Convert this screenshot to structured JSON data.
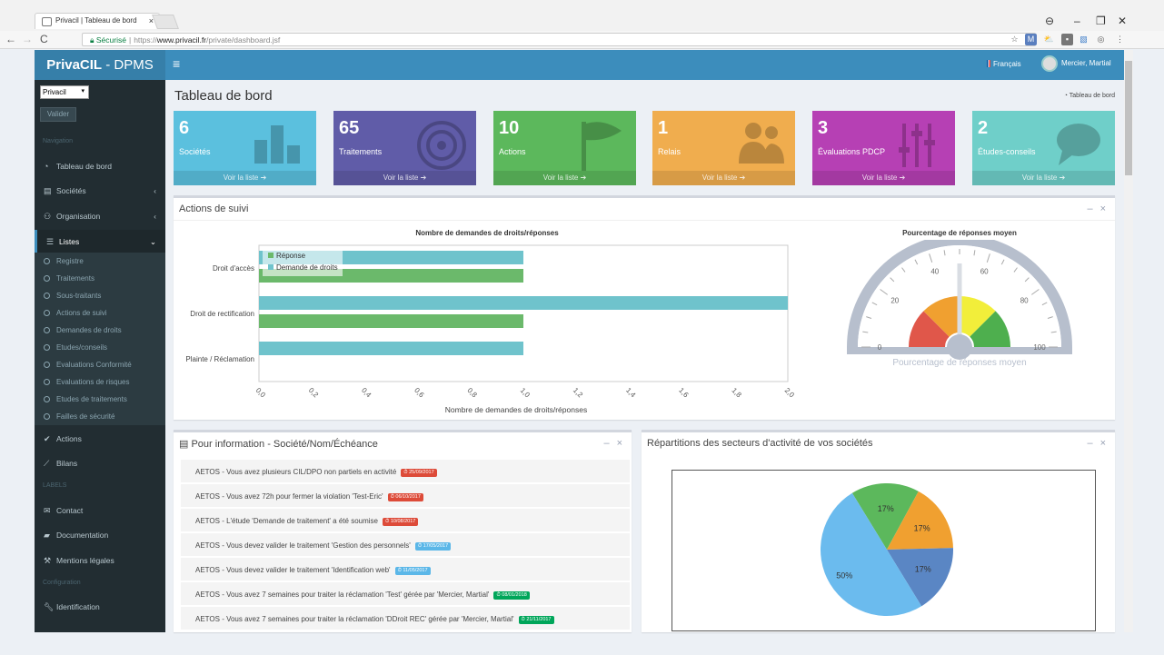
{
  "browser": {
    "tab_title": "Privacil | Tableau de bord",
    "secure_label": "Sécurisé",
    "url_scheme": "https://",
    "url_domain": "www.privacil.fr",
    "url_path": "/private/dashboard.jsf"
  },
  "topbar": {
    "logo_bold": "PrivaCIL",
    "logo_light": " - DPMS",
    "language": "Français",
    "user_name": "Mercier, Martial"
  },
  "sidebar": {
    "company_select": "Privacil",
    "validate_button": "Valider",
    "nav_header": "Navigation",
    "labels_header": "LABELS",
    "config_header": "Configuration",
    "items": [
      {
        "label": "Tableau de bord",
        "icon": "dashboard-icon"
      },
      {
        "label": "Sociétés",
        "icon": "building-icon"
      },
      {
        "label": "Organisation",
        "icon": "sitemap-icon"
      },
      {
        "label": "Listes",
        "icon": "list-icon"
      },
      {
        "label": "Actions",
        "icon": "check-icon"
      },
      {
        "label": "Bilans",
        "icon": "line-chart-icon"
      },
      {
        "label": "Contact",
        "icon": "envelope-icon"
      },
      {
        "label": "Documentation",
        "icon": "book-icon"
      },
      {
        "label": "Mentions légales",
        "icon": "gavel-icon"
      },
      {
        "label": "Identification",
        "icon": "wrench-icon"
      }
    ],
    "sub_items": [
      "Registre",
      "Traitements",
      "Sous-traitants",
      "Actions de suivi",
      "Demandes de droits",
      "Etudes/conseils",
      "Evaluations Conformité",
      "Evaluations de risques",
      "Etudes de traitements",
      "Failles de sécurité"
    ]
  },
  "page": {
    "title": "Tableau de bord",
    "breadcrumb": "Tableau de bord"
  },
  "stat_boxes": [
    {
      "number": "6",
      "label": "Sociétés",
      "link": "Voir la liste",
      "color": "#5bc0de",
      "icon": "bar-chart-icon"
    },
    {
      "number": "65",
      "label": "Traitements",
      "link": "Voir la liste",
      "color": "#605ca8",
      "icon": "target-icon"
    },
    {
      "number": "10",
      "label": "Actions",
      "link": "Voir la liste",
      "color": "#5cb85c",
      "icon": "flag-icon"
    },
    {
      "number": "1",
      "label": "Relais",
      "link": "Voir la liste",
      "color": "#f0ad4e",
      "icon": "users-icon"
    },
    {
      "number": "3",
      "label": "Évaluations PDCP",
      "link": "Voir la liste",
      "color": "#b640b4",
      "icon": "sliders-icon"
    },
    {
      "number": "2",
      "label": "Études-conseils",
      "link": "Voir la liste",
      "color": "#6fcfc9",
      "icon": "comments-icon"
    }
  ],
  "actions_box": {
    "title": "Actions de suivi"
  },
  "info_box": {
    "title": "Pour information - Société/Nom/Échéance",
    "rows": [
      {
        "text": "AETOS - Vous avez plusieurs CIL/DPO non partiels en activité",
        "badge": "25/09/2017",
        "badge_color": "red"
      },
      {
        "text": "AETOS - Vous avez 72h pour fermer la violation 'Test-Eric'",
        "badge": "06/10/2017",
        "badge_color": "red"
      },
      {
        "text": "AETOS - L'étude 'Demande de traitement' a été soumise",
        "badge": "10/08/2017",
        "badge_color": "red"
      },
      {
        "text": "AETOS - Vous devez valider le traitement 'Gestion des personnels'",
        "badge": "17/05/2017",
        "badge_color": "blue"
      },
      {
        "text": "AETOS - Vous devez valider le traitement 'Identification web'",
        "badge": "11/05/2017",
        "badge_color": "blue"
      },
      {
        "text": "AETOS - Vous avez 7 semaines pour traiter la réclamation 'Test' gérée par 'Mercier, Martial'",
        "badge": "08/01/2018",
        "badge_color": "green"
      },
      {
        "text": "AETOS - Vous avez 7 semaines pour traiter la réclamation 'DDroit REC' gérée par 'Mercier, Martial'",
        "badge": "21/11/2017",
        "badge_color": "green"
      }
    ]
  },
  "sectors_box": {
    "title": "Répartitions des secteurs d'activité de vos sociétés"
  },
  "chart_data": [
    {
      "type": "bar",
      "orientation": "horizontal",
      "title": "Nombre de demandes de droits/réponses",
      "xlabel": "Nombre de demandes de droits/réponses",
      "ylabel": "",
      "categories": [
        "Droit d'accès",
        "Droit de rectification",
        "Plainte / Réclamation"
      ],
      "series": [
        {
          "name": "Réponse",
          "values": [
            1,
            1,
            0
          ],
          "color": "#6bb96b"
        },
        {
          "name": "Demande de droits",
          "values": [
            1,
            2,
            1
          ],
          "color": "#6fc3cc"
        }
      ],
      "xlim": [
        0,
        2
      ],
      "xticks": [
        "0,0",
        "0,2",
        "0,4",
        "0,6",
        "0,8",
        "1,0",
        "1,2",
        "1,4",
        "1,6",
        "1,8",
        "2,0"
      ],
      "legend": "top-left"
    },
    {
      "type": "gauge",
      "title": "Pourcentage de réponses moyen",
      "label": "Pourcentage de réponses moyen",
      "min": 0,
      "max": 100,
      "ticks": [
        "0",
        "20",
        "40",
        "60",
        "80",
        "100"
      ],
      "value": 50,
      "bands": [
        {
          "from": 0,
          "to": 25,
          "color": "#e0574a"
        },
        {
          "from": 25,
          "to": 50,
          "color": "#f0a030"
        },
        {
          "from": 50,
          "to": 75,
          "color": "#f2ee3a"
        },
        {
          "from": 75,
          "to": 100,
          "color": "#4eaf4e"
        }
      ]
    },
    {
      "type": "pie",
      "slices": [
        {
          "label": "50%",
          "value": 50,
          "color": "#6bbbee"
        },
        {
          "label": "17%",
          "value": 16.67,
          "color": "#5cb85c"
        },
        {
          "label": "17%",
          "value": 16.67,
          "color": "#f0a030"
        },
        {
          "label": "17%",
          "value": 16.67,
          "color": "#5a86c4"
        }
      ]
    }
  ]
}
